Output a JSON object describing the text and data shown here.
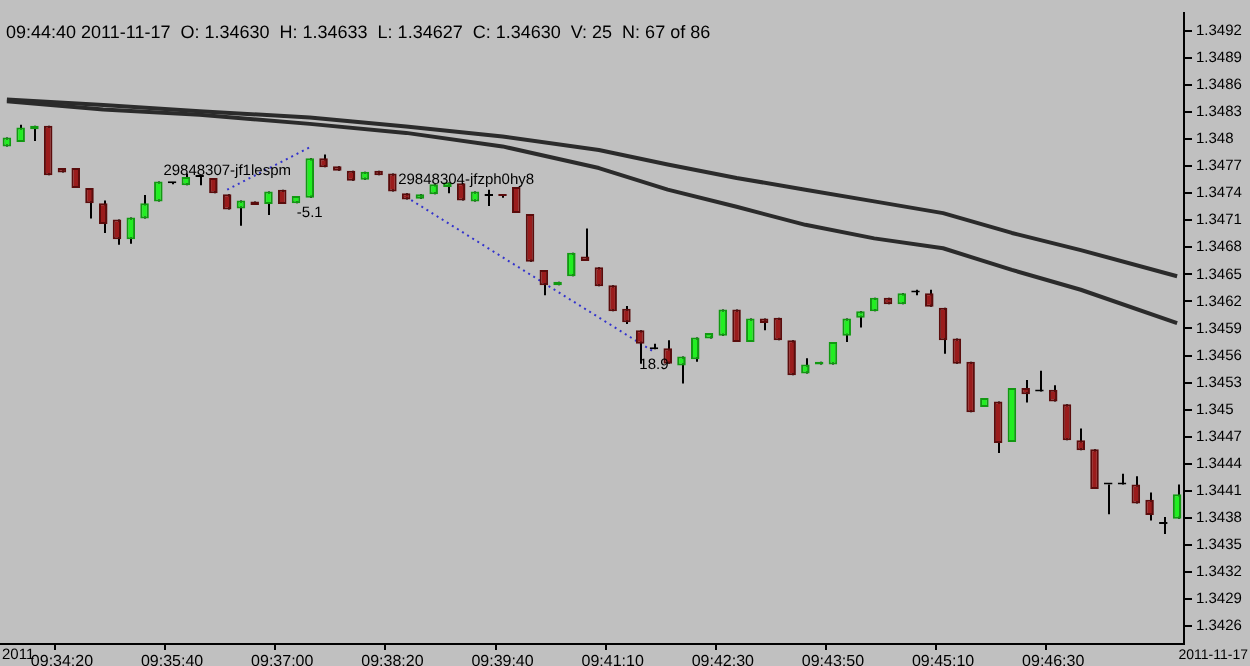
{
  "chart_data": {
    "type": "candlestick",
    "title": "09:44:40 2011-11-17  O: 1.34630  H: 1.34633  L: 1.34627  C: 1.34630  V: 25  N: 67 of 86",
    "categories": [
      null,
      null,
      null,
      null,
      "09:34:20",
      null,
      null,
      null,
      null,
      null,
      null,
      null,
      "09:35:40",
      null,
      null,
      null,
      null,
      null,
      null,
      null,
      "09:37:00",
      null,
      null,
      null,
      null,
      null,
      null,
      null,
      "09:38:20",
      null,
      null,
      null,
      null,
      null,
      null,
      null,
      "09:39:40",
      null,
      null,
      null,
      null,
      null,
      null,
      null,
      "09:41:10",
      null,
      null,
      null,
      null,
      null,
      null,
      null,
      "09:42:30",
      null,
      null,
      null,
      null,
      null,
      null,
      null,
      "09:43:50",
      null,
      null,
      null,
      null,
      null,
      null,
      null,
      "09:45:10",
      null,
      null,
      null,
      null,
      null,
      null,
      null,
      "09:46:30",
      null,
      null,
      null,
      null,
      null,
      null,
      null,
      null,
      null
    ],
    "ohlc": [
      [
        1.34792,
        1.34802,
        1.34792,
        1.34802
      ],
      [
        1.34797,
        1.34816,
        1.34797,
        1.34813
      ],
      [
        1.34811,
        1.34815,
        1.34798,
        1.34815
      ],
      [
        1.34815,
        1.34815,
        1.3476,
        1.3476
      ],
      [
        1.34768,
        1.34768,
        1.34763,
        1.34763
      ],
      [
        1.34768,
        1.34768,
        1.34746,
        1.34746
      ],
      [
        1.34746,
        1.34746,
        1.34712,
        1.34729
      ],
      [
        1.34729,
        1.34732,
        1.34696,
        1.34706
      ],
      [
        1.34711,
        1.34711,
        1.34683,
        1.34689
      ],
      [
        1.34689,
        1.34713,
        1.34684,
        1.34713
      ],
      [
        1.34712,
        1.34738,
        1.34712,
        1.34729
      ],
      [
        1.34731,
        1.34753,
        1.34731,
        1.34753
      ],
      [
        1.34751,
        1.34752,
        1.3475,
        1.34751
      ],
      [
        1.34749,
        1.34762,
        1.34749,
        1.34758
      ],
      [
        1.34758,
        1.34758,
        1.34749,
        1.34758
      ],
      [
        1.34757,
        1.34757,
        1.3474,
        1.3474
      ],
      [
        1.34739,
        1.34739,
        1.34722,
        1.34722
      ],
      [
        1.34723,
        1.34732,
        1.34704,
        1.34732
      ],
      [
        1.34731,
        1.34731,
        1.34727,
        1.34727
      ],
      [
        1.34728,
        1.34742,
        1.34716,
        1.34742
      ],
      [
        1.34744,
        1.34744,
        1.34728,
        1.34728
      ],
      [
        1.34729,
        1.34737,
        1.34729,
        1.34737
      ],
      [
        1.34735,
        1.34779,
        1.34735,
        1.34779
      ],
      [
        1.34779,
        1.34783,
        1.34769,
        1.34769
      ],
      [
        1.3477,
        1.3477,
        1.34765,
        1.34765
      ],
      [
        1.34765,
        1.34765,
        1.34754,
        1.34754
      ],
      [
        1.34755,
        1.34764,
        1.34755,
        1.34764
      ],
      [
        1.34765,
        1.34765,
        1.3476,
        1.3476
      ],
      [
        1.34762,
        1.34762,
        1.34742,
        1.34742
      ],
      [
        1.3474,
        1.3474,
        1.34733,
        1.34733
      ],
      [
        1.34734,
        1.34739,
        1.34734,
        1.34739
      ],
      [
        1.34739,
        1.3475,
        1.34739,
        1.3475
      ],
      [
        1.34747,
        1.34752,
        1.3474,
        1.34752
      ],
      [
        1.34751,
        1.34751,
        1.34732,
        1.34732
      ],
      [
        1.34731,
        1.34742,
        1.34731,
        1.34742
      ],
      [
        1.34737,
        1.34744,
        1.34726,
        1.34737
      ],
      [
        1.34738,
        1.34738,
        1.34735,
        1.34737
      ],
      [
        1.34747,
        1.34747,
        1.34718,
        1.34718
      ],
      [
        1.34717,
        1.34717,
        1.34664,
        1.34664
      ],
      [
        1.34655,
        1.34655,
        1.34627,
        1.34638
      ],
      [
        1.34638,
        1.34642,
        1.34638,
        1.34642
      ],
      [
        1.34648,
        1.34674,
        1.34648,
        1.34674
      ],
      [
        1.3467,
        1.34701,
        1.34665,
        1.34665
      ],
      [
        1.34658,
        1.34658,
        1.34637,
        1.34637
      ],
      [
        1.34638,
        1.34638,
        1.34609,
        1.34609
      ],
      [
        1.34612,
        1.34615,
        1.34595,
        1.34597
      ],
      [
        1.34588,
        1.34588,
        1.34551,
        1.34573
      ],
      [
        1.34567,
        1.34573,
        1.34567,
        1.34567
      ],
      [
        1.34568,
        1.34577,
        1.34551,
        1.34551
      ],
      [
        1.34549,
        1.34559,
        1.34529,
        1.34559
      ],
      [
        1.34556,
        1.3458,
        1.34553,
        1.3458
      ],
      [
        1.34579,
        1.34585,
        1.34579,
        1.34585
      ],
      [
        1.34582,
        1.34611,
        1.34582,
        1.34611
      ],
      [
        1.34611,
        1.34611,
        1.34575,
        1.34575
      ],
      [
        1.34575,
        1.34601,
        1.34575,
        1.34601
      ],
      [
        1.34601,
        1.34601,
        1.34588,
        1.34596
      ],
      [
        1.34602,
        1.34602,
        1.34577,
        1.34577
      ],
      [
        1.34577,
        1.34577,
        1.34538,
        1.34538
      ],
      [
        1.3454,
        1.34557,
        1.3454,
        1.3455
      ],
      [
        1.3455,
        1.34553,
        1.3455,
        1.34553
      ],
      [
        1.3455,
        1.34575,
        1.3455,
        1.34575
      ],
      [
        1.34582,
        1.34601,
        1.34575,
        1.34601
      ],
      [
        1.34602,
        1.34609,
        1.34591,
        1.34609
      ],
      [
        1.34609,
        1.34624,
        1.34609,
        1.34624
      ],
      [
        1.34624,
        1.34624,
        1.34617,
        1.34617
      ],
      [
        1.34617,
        1.34629,
        1.34617,
        1.34629
      ],
      [
        1.3463,
        1.34633,
        1.34627,
        1.3463
      ],
      [
        1.34629,
        1.34633,
        1.34614,
        1.34614
      ],
      [
        1.34613,
        1.34613,
        1.34562,
        1.34577
      ],
      [
        1.34579,
        1.34579,
        1.34551,
        1.34551
      ],
      [
        1.34553,
        1.34553,
        1.34497,
        1.34497
      ],
      [
        1.34503,
        1.34513,
        1.34503,
        1.34513
      ],
      [
        1.34509,
        1.34509,
        1.34452,
        1.34463
      ],
      [
        1.34464,
        1.34524,
        1.34464,
        1.34524
      ],
      [
        1.34524,
        1.34533,
        1.34508,
        1.34517
      ],
      [
        1.3452,
        1.34543,
        1.3452,
        1.3452
      ],
      [
        1.34522,
        1.34527,
        1.34509,
        1.34509
      ],
      [
        1.34506,
        1.34506,
        1.34466,
        1.34466
      ],
      [
        1.34466,
        1.34479,
        1.34455,
        1.34455
      ],
      [
        1.34456,
        1.34456,
        1.34412,
        1.34412
      ],
      [
        1.34417,
        1.34417,
        1.34384,
        1.34417
      ],
      [
        1.34417,
        1.34429,
        1.34417,
        1.34417
      ],
      [
        1.34417,
        1.34426,
        1.34396,
        1.34396
      ],
      [
        1.344,
        1.34408,
        1.34377,
        1.34383
      ],
      [
        1.34373,
        1.34381,
        1.34362,
        1.34373
      ],
      [
        1.34379,
        1.34417,
        1.34379,
        1.34406
      ]
    ],
    "series": [
      {
        "type": "line",
        "color": "#2b2b2b",
        "line_style": "solid",
        "values": [
          1.34844,
          null,
          null,
          null,
          null,
          null,
          null,
          1.34838,
          null,
          null,
          null,
          null,
          null,
          null,
          1.34831,
          null,
          null,
          null,
          null,
          null,
          null,
          null,
          1.34824,
          null,
          null,
          null,
          null,
          null,
          null,
          1.34814,
          null,
          null,
          null,
          null,
          null,
          null,
          1.34803,
          null,
          null,
          null,
          null,
          null,
          null,
          1.34788,
          null,
          null,
          null,
          null,
          1.34772,
          null,
          null,
          null,
          null,
          1.34757,
          null,
          null,
          null,
          null,
          1.34744,
          null,
          null,
          null,
          null,
          1.34731,
          null,
          null,
          null,
          null,
          1.34718,
          null,
          null,
          null,
          null,
          1.34696,
          null,
          null,
          null,
          null,
          1.34677,
          null,
          null,
          null,
          null,
          null,
          null,
          1.34648
        ]
      },
      {
        "type": "line",
        "color": "#2b2b2b",
        "line_style": "solid",
        "values": [
          1.34842,
          null,
          null,
          null,
          null,
          null,
          null,
          1.34833,
          null,
          null,
          null,
          null,
          null,
          null,
          1.34827,
          null,
          null,
          null,
          null,
          null,
          null,
          null,
          1.34817,
          null,
          null,
          null,
          null,
          null,
          null,
          1.34807,
          null,
          null,
          null,
          null,
          null,
          null,
          1.34792,
          null,
          null,
          null,
          null,
          null,
          null,
          1.34768,
          null,
          null,
          null,
          null,
          1.34744,
          null,
          null,
          null,
          null,
          1.34725,
          null,
          null,
          null,
          null,
          1.34705,
          null,
          null,
          null,
          null,
          1.3469,
          null,
          null,
          null,
          null,
          1.34679,
          null,
          null,
          null,
          null,
          1.34655,
          null,
          null,
          null,
          null,
          1.34633,
          null,
          null,
          null,
          null,
          null,
          null,
          1.34596
        ]
      },
      {
        "type": "line",
        "color": "#3333cc",
        "line_style": "dotted",
        "values": [
          null,
          null,
          null,
          null,
          null,
          null,
          null,
          null,
          null,
          null,
          null,
          null,
          null,
          null,
          null,
          null,
          1.34744,
          null,
          null,
          null,
          null,
          null,
          1.34791,
          null,
          null,
          null,
          null,
          null,
          null,
          null,
          null,
          null,
          null,
          null,
          null,
          null,
          null,
          null,
          null,
          null,
          null,
          null,
          null,
          null,
          null,
          null,
          null,
          null,
          null,
          null,
          null,
          null,
          null,
          null,
          null,
          null,
          null,
          null,
          null,
          null,
          null,
          null,
          null,
          null,
          null,
          null,
          null,
          null,
          null,
          null,
          null,
          null,
          null,
          null,
          null,
          null,
          null,
          null,
          null,
          null,
          null,
          null,
          null,
          null,
          null,
          null
        ]
      },
      {
        "type": "line",
        "color": "#3333cc",
        "line_style": "dotted",
        "values": [
          null,
          null,
          null,
          null,
          null,
          null,
          null,
          null,
          null,
          null,
          null,
          null,
          null,
          null,
          null,
          null,
          null,
          null,
          null,
          null,
          null,
          null,
          null,
          null,
          null,
          null,
          null,
          null,
          null,
          1.34736,
          null,
          null,
          null,
          null,
          null,
          null,
          null,
          null,
          null,
          null,
          null,
          null,
          null,
          null,
          null,
          null,
          null,
          1.34564,
          null,
          null,
          null,
          null,
          null,
          null,
          null,
          null,
          null,
          null,
          null,
          null,
          null,
          null,
          null,
          null,
          null,
          null,
          null,
          null,
          null,
          null,
          null,
          null,
          null,
          null,
          null,
          null,
          null,
          null,
          null,
          null,
          null,
          null,
          null,
          null,
          null,
          null
        ]
      }
    ],
    "annotations": [
      "29848307-jf1lespm",
      "-5.1",
      "29848304-jfzph0hy8",
      "18.9",
      "2011",
      "2011-11-17"
    ],
    "ylim": [
      1.3424,
      1.3494
    ],
    "yticks": [
      1.3426,
      1.3429,
      1.3432,
      1.3435,
      1.3438,
      1.3441,
      1.3444,
      1.3447,
      1.345,
      1.3453,
      1.3456,
      1.3459,
      1.3462,
      1.3465,
      1.3468,
      1.3471,
      1.3474,
      1.3477,
      1.348,
      1.3483,
      1.3486,
      1.3489,
      1.3492
    ]
  }
}
